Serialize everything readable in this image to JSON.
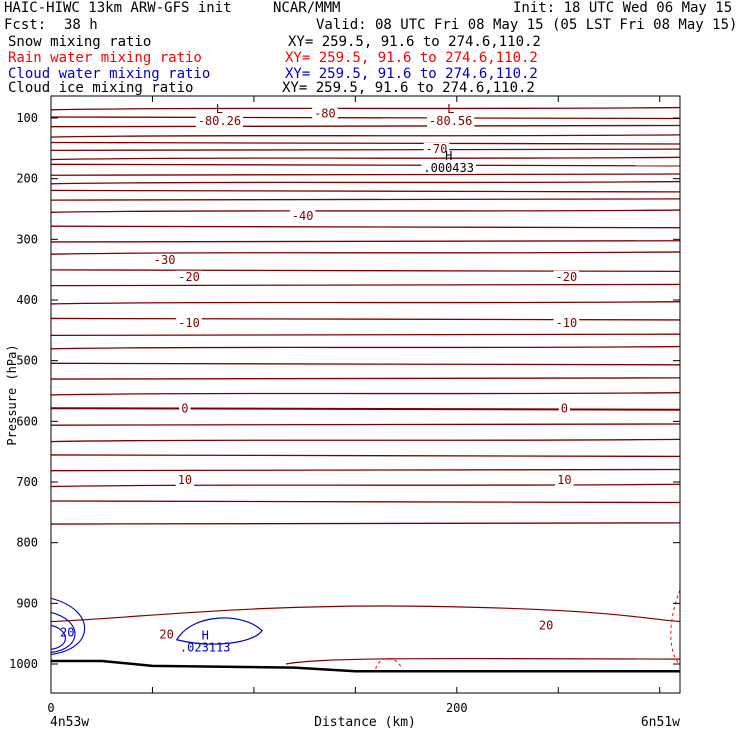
{
  "header": {
    "model": "HAIC-HIWC 13km ARW-GFS init",
    "org": "NCAR/MMM",
    "init": "Init: 18 UTC Wed 06 May 15",
    "fcst_label": "Fcst:",
    "fcst_value": "38 h",
    "valid": "Valid: 08 UTC Fri 08 May 15 (05 LST Fri 08 May 15)"
  },
  "fields": [
    {
      "name": "Snow mixing ratio",
      "xy": "XY= 259.5, 91.6 to 274.6,110.2",
      "color": "#000000"
    },
    {
      "name": "Rain water mixing ratio",
      "xy": "XY= 259.5, 91.6 to 274.6,110.2",
      "color": "#ff0000"
    },
    {
      "name": "Cloud water mixing ratio",
      "xy": "XY= 259.5, 91.6 to 274.6,110.2",
      "color": "#0000cc"
    },
    {
      "name": "Cloud ice mixing ratio",
      "xy": "XY= 259.5, 91.6 to 274.6,110.2",
      "color": "#000000"
    }
  ],
  "chart_data": {
    "type": "line",
    "ylabel": "Pressure (hPa)",
    "xlabel": "Distance (km)",
    "y_ticks": [
      "100",
      "200",
      "300",
      "400",
      "500",
      "600",
      "700",
      "800",
      "900",
      "1000"
    ],
    "x_ticks": [
      "0",
      "200"
    ],
    "x_end_labels": {
      "left": "4n53w",
      "right": "6n51w"
    },
    "ylim": [
      1050,
      70
    ],
    "xlim": [
      0,
      310
    ],
    "temp_color": "#800000",
    "cloud_water_color": "#0000cc",
    "rain_color": "#ff0000",
    "isotherm_pressures": [
      84,
      100,
      113,
      129,
      142,
      152,
      166,
      178,
      193,
      206,
      221,
      234,
      253,
      280,
      303,
      322,
      352,
      375,
      404,
      432,
      457,
      478,
      506,
      529,
      554,
      580,
      605,
      631,
      657,
      680,
      705,
      733,
      768
    ],
    "isotherm_labels": [
      {
        "x": 56,
        "p": 337,
        "text": "-30"
      },
      {
        "x": 124,
        "p": 265,
        "text": "-40"
      },
      {
        "x": 68,
        "p": 365,
        "text": "-20"
      },
      {
        "x": 254,
        "p": 365,
        "text": "-20"
      },
      {
        "x": 68,
        "p": 441,
        "text": "-10"
      },
      {
        "x": 254,
        "p": 441,
        "text": "-10"
      },
      {
        "x": 66,
        "p": 582,
        "text": "0"
      },
      {
        "x": 253,
        "p": 582,
        "text": "0"
      },
      {
        "x": 66,
        "p": 700,
        "text": "10"
      },
      {
        "x": 253,
        "p": 700,
        "text": "10"
      },
      {
        "x": 57,
        "p": 955,
        "text": "20"
      },
      {
        "x": 244,
        "p": 940,
        "text": "20"
      },
      {
        "x": 190,
        "p": 154,
        "text": "-70"
      },
      {
        "x": 135,
        "p": 96,
        "text": "-80"
      }
    ],
    "extrema": [
      {
        "x": 83,
        "p": 82,
        "letter": "L",
        "value": "-80.26",
        "color": "#800000"
      },
      {
        "x": 197,
        "p": 82,
        "letter": "L",
        "value": "-80.56",
        "color": "#800000"
      },
      {
        "x": 196,
        "p": 159,
        "letter": "H",
        "value": ".000433",
        "color": "#000000"
      },
      {
        "x": 76,
        "p": 950,
        "letter": "H",
        "value": ".023113",
        "color": "#0000cc"
      }
    ],
    "cloud_water_labels": [
      {
        "x": 8,
        "p": 955,
        "text": "20"
      }
    ],
    "series": [
      {
        "name": "Snow mixing ratio"
      },
      {
        "name": "Rain water mixing ratio"
      },
      {
        "name": "Cloud water mixing ratio"
      },
      {
        "name": "Cloud ice mixing ratio"
      }
    ]
  }
}
